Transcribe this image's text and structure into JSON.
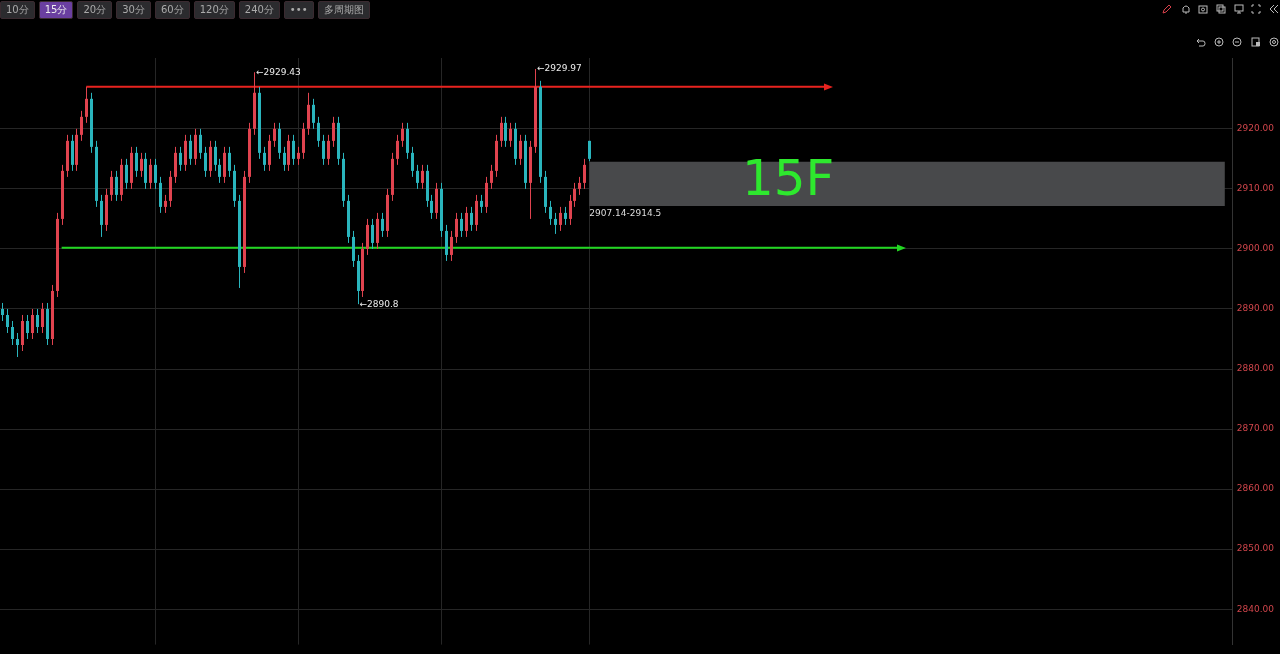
{
  "chart_data": {
    "type": "candlestick",
    "categories": [
      null,
      null,
      null,
      null,
      null,
      null,
      null,
      null,
      null,
      null,
      null,
      null,
      null,
      null,
      null,
      null,
      null,
      null,
      null,
      null,
      null,
      null,
      null,
      null,
      null,
      null,
      null,
      null,
      null,
      null,
      null,
      null,
      null,
      null,
      null,
      null,
      null,
      null,
      null,
      null,
      null,
      null,
      null,
      null,
      null,
      null,
      null,
      null,
      null,
      null,
      null,
      null,
      null,
      null,
      null,
      null,
      null,
      null,
      null,
      null,
      null,
      null,
      null,
      null,
      null,
      null,
      null,
      null,
      null,
      null,
      null,
      null,
      null,
      null,
      null,
      null,
      null,
      null,
      null,
      null,
      null,
      null,
      null,
      null,
      null,
      null,
      null,
      null,
      null,
      null,
      null,
      null,
      null,
      null,
      null,
      null,
      null,
      null,
      null,
      null,
      null,
      null,
      null,
      null,
      null,
      null,
      null,
      null,
      null,
      null,
      null,
      null,
      null,
      null,
      null,
      null,
      null,
      null,
      null,
      null,
      null,
      null,
      null,
      null,
      null,
      null,
      null,
      null,
      null,
      null,
      null,
      null,
      null,
      null,
      null,
      null,
      null,
      null,
      null,
      null,
      null,
      null,
      null,
      null,
      null,
      null,
      null,
      null,
      null,
      null,
      null,
      null,
      null,
      null,
      null,
      null,
      null,
      null,
      null,
      null,
      null,
      null,
      null,
      null,
      null,
      null,
      null,
      null,
      null,
      null,
      null,
      null,
      null,
      null,
      null,
      null,
      null,
      null,
      null,
      null,
      null,
      null,
      null,
      null,
      null,
      null,
      null,
      null,
      null,
      null,
      null,
      null,
      null,
      null,
      null,
      null,
      null,
      null,
      null,
      null,
      null,
      null,
      null,
      null,
      null,
      null,
      null,
      null,
      null,
      null,
      null,
      null,
      null,
      null,
      null,
      null,
      null,
      null,
      null,
      null,
      null,
      null,
      null,
      null,
      null,
      null,
      null,
      null,
      null,
      null,
      null,
      null,
      null,
      null,
      null,
      null,
      null,
      null,
      null,
      null,
      null,
      null,
      null,
      null,
      null,
      null,
      null,
      null,
      null,
      null
    ],
    "ohlc": [
      [
        2890,
        2891,
        2888,
        2889
      ],
      [
        2889,
        2890,
        2886,
        2887
      ],
      [
        2887,
        2888,
        2884,
        2885
      ],
      [
        2885,
        2886,
        2882,
        2884
      ],
      [
        2884,
        2889,
        2883,
        2888
      ],
      [
        2888,
        2889,
        2885,
        2886
      ],
      [
        2886,
        2890,
        2885,
        2889
      ],
      [
        2889,
        2890,
        2886,
        2887
      ],
      [
        2887,
        2891,
        2886,
        2890
      ],
      [
        2890,
        2891,
        2884,
        2885
      ],
      [
        2885,
        2894,
        2884,
        2893
      ],
      [
        2893,
        2906,
        2892,
        2905
      ],
      [
        2905,
        2914,
        2904,
        2913
      ],
      [
        2913,
        2919,
        2912,
        2918
      ],
      [
        2918,
        2919,
        2913,
        2914
      ],
      [
        2914,
        2920,
        2913,
        2919
      ],
      [
        2919,
        2923,
        2918,
        2922
      ],
      [
        2922,
        2927,
        2921,
        2925
      ],
      [
        2925,
        2926,
        2916,
        2917
      ],
      [
        2917,
        2918,
        2907,
        2908
      ],
      [
        2908,
        2909,
        2902,
        2904
      ],
      [
        2904,
        2910,
        2903,
        2909
      ],
      [
        2909,
        2913,
        2908,
        2912
      ],
      [
        2912,
        2913,
        2908,
        2909
      ],
      [
        2909,
        2915,
        2908,
        2914
      ],
      [
        2914,
        2915,
        2910,
        2911
      ],
      [
        2911,
        2917,
        2910,
        2916
      ],
      [
        2916,
        2917,
        2912,
        2913
      ],
      [
        2913,
        2916,
        2912,
        2915
      ],
      [
        2915,
        2916,
        2910,
        2911
      ],
      [
        2911,
        2915,
        2910,
        2914
      ],
      [
        2914,
        2915,
        2910,
        2911
      ],
      [
        2911,
        2912,
        2906,
        2907
      ],
      [
        2907,
        2909,
        2906,
        2908
      ],
      [
        2908,
        2913,
        2907,
        2912
      ],
      [
        2912,
        2917,
        2911,
        2916
      ],
      [
        2916,
        2917,
        2913,
        2914
      ],
      [
        2914,
        2919,
        2913,
        2918
      ],
      [
        2918,
        2919,
        2914,
        2915
      ],
      [
        2915,
        2920,
        2914,
        2919
      ],
      [
        2919,
        2920,
        2915,
        2916
      ],
      [
        2916,
        2917,
        2912,
        2913
      ],
      [
        2913,
        2918,
        2912,
        2917
      ],
      [
        2917,
        2918,
        2913,
        2914
      ],
      [
        2914,
        2915,
        2911,
        2912
      ],
      [
        2912,
        2917,
        2911,
        2916
      ],
      [
        2916,
        2917,
        2912,
        2913
      ],
      [
        2913,
        2914,
        2907,
        2908
      ],
      [
        2908,
        2909,
        2893.5,
        2897
      ],
      [
        2897,
        2913,
        2896,
        2912
      ],
      [
        2912,
        2921,
        2911,
        2920
      ],
      [
        2920,
        2929.43,
        2919,
        2926
      ],
      [
        2926,
        2927,
        2915,
        2916
      ],
      [
        2916,
        2917,
        2913,
        2914
      ],
      [
        2914,
        2919,
        2913,
        2918
      ],
      [
        2918,
        2921,
        2917,
        2920
      ],
      [
        2920,
        2921,
        2915,
        2916
      ],
      [
        2916,
        2917,
        2913,
        2914
      ],
      [
        2914,
        2919,
        2913,
        2918
      ],
      [
        2918,
        2919,
        2914,
        2915
      ],
      [
        2915,
        2917,
        2914,
        2916
      ],
      [
        2916,
        2921,
        2915,
        2920
      ],
      [
        2920,
        2926,
        2919,
        2924
      ],
      [
        2924,
        2925,
        2920,
        2921
      ],
      [
        2921,
        2922,
        2917,
        2918
      ],
      [
        2918,
        2919,
        2914,
        2915
      ],
      [
        2915,
        2919,
        2914,
        2918
      ],
      [
        2918,
        2922,
        2917,
        2921
      ],
      [
        2921,
        2922,
        2914,
        2915
      ],
      [
        2915,
        2916,
        2907,
        2908
      ],
      [
        2908,
        2909,
        2901,
        2902
      ],
      [
        2902,
        2903,
        2897,
        2898
      ],
      [
        2898,
        2899,
        2890.8,
        2893
      ],
      [
        2893,
        2901,
        2892,
        2900
      ],
      [
        2900,
        2905,
        2899,
        2904
      ],
      [
        2904,
        2905,
        2900,
        2901
      ],
      [
        2901,
        2906,
        2900,
        2905
      ],
      [
        2905,
        2906,
        2902,
        2903
      ],
      [
        2903,
        2910,
        2902,
        2909
      ],
      [
        2909,
        2916,
        2908,
        2915
      ],
      [
        2915,
        2919,
        2914,
        2918
      ],
      [
        2918,
        2921,
        2917,
        2920
      ],
      [
        2920,
        2921,
        2915,
        2916
      ],
      [
        2916,
        2917,
        2912,
        2913
      ],
      [
        2913,
        2914,
        2910,
        2911
      ],
      [
        2911,
        2914,
        2910,
        2913
      ],
      [
        2913,
        2914,
        2907,
        2908
      ],
      [
        2908,
        2909,
        2905,
        2906
      ],
      [
        2906,
        2911,
        2905,
        2910
      ],
      [
        2910,
        2911,
        2902,
        2903
      ],
      [
        2903,
        2904,
        2898,
        2899
      ],
      [
        2899,
        2903,
        2898,
        2902
      ],
      [
        2902,
        2906,
        2901,
        2905
      ],
      [
        2905,
        2906,
        2902,
        2903
      ],
      [
        2903,
        2907,
        2902,
        2906
      ],
      [
        2906,
        2907,
        2903,
        2904
      ],
      [
        2904,
        2909,
        2903,
        2908
      ],
      [
        2908,
        2909,
        2906,
        2907
      ],
      [
        2907,
        2912,
        2906,
        2911
      ],
      [
        2911,
        2914,
        2910,
        2913
      ],
      [
        2913,
        2919,
        2912,
        2918
      ],
      [
        2918,
        2922,
        2917,
        2921
      ],
      [
        2921,
        2922,
        2917,
        2918
      ],
      [
        2918,
        2921,
        2917,
        2920
      ],
      [
        2920,
        2921,
        2914,
        2915
      ],
      [
        2915,
        2919,
        2914,
        2918
      ],
      [
        2918,
        2919,
        2910,
        2911
      ],
      [
        2911,
        2918,
        2905,
        2917
      ],
      [
        2917,
        2929.97,
        2916,
        2927
      ],
      [
        2927,
        2928,
        2911,
        2912
      ],
      [
        2912,
        2913,
        2906,
        2907
      ],
      [
        2907,
        2908,
        2904,
        2905
      ],
      [
        2905,
        2906,
        2902.5,
        2904
      ],
      [
        2904,
        2907,
        2903,
        2906
      ],
      [
        2906,
        2907,
        2904,
        2905
      ],
      [
        2905,
        2909,
        2904,
        2908
      ],
      [
        2908,
        2911,
        2907,
        2910
      ],
      [
        2910,
        2912,
        2909,
        2911
      ],
      [
        2911,
        2915,
        2910,
        2914
      ],
      [
        2918,
        2918,
        2914.6,
        2915
      ],
      null,
      null,
      null,
      null,
      null,
      null,
      null,
      null,
      null,
      null,
      null,
      null,
      null,
      null,
      null,
      null,
      null,
      null,
      null,
      null,
      null,
      null,
      null,
      null,
      null,
      null,
      null,
      null,
      null,
      null,
      null,
      null,
      null,
      null,
      null,
      null,
      null,
      null,
      null,
      null,
      null,
      null,
      null,
      null,
      null,
      null,
      null,
      null,
      null,
      null,
      null,
      null,
      null,
      null,
      null,
      null,
      null,
      null,
      null,
      null,
      null,
      null,
      null,
      null,
      null,
      null,
      null,
      null,
      null,
      null,
      null,
      null,
      null,
      null,
      null,
      null,
      null,
      null,
      null,
      null,
      null,
      null,
      null,
      null,
      null,
      null,
      null,
      null,
      null,
      null,
      null,
      null,
      null,
      null,
      null,
      null,
      null,
      null,
      null,
      null,
      null,
      null,
      null,
      null,
      null,
      null,
      null,
      null,
      null,
      null,
      null,
      null,
      null,
      null,
      null,
      null,
      null,
      null,
      null,
      null,
      null,
      null,
      null,
      null,
      null,
      null,
      null,
      null,
      null,
      null
    ],
    "ylim": [
      2834.1,
      2931.8
    ],
    "yticks": [
      {
        "value": 2840,
        "label": "2840.00"
      },
      {
        "value": 2850,
        "label": "2850.00"
      },
      {
        "value": 2860,
        "label": "2860.00"
      },
      {
        "value": 2870,
        "label": "2870.00"
      },
      {
        "value": 2880,
        "label": "2880.00"
      },
      {
        "value": 2890,
        "label": "2890.00"
      },
      {
        "value": 2900,
        "label": "2900.00"
      },
      {
        "value": 2910,
        "label": "2910.00"
      },
      {
        "value": 2920,
        "label": "2920.00"
      }
    ],
    "tick_labels": "y",
    "grid": true,
    "ref_lines": [
      {
        "axis": "y",
        "value": 2927,
        "color": "#e8231f"
      },
      {
        "axis": "y",
        "value": 2900.2,
        "color": "#22d622"
      }
    ],
    "bands": [
      {
        "axis": "y",
        "from": 2907.14,
        "to": 2914.5,
        "label": "2907.14-2914.5",
        "color": "#48494b"
      }
    ],
    "annotations": [
      "←2929.43",
      "←2929.97",
      "←2890.8",
      "15F",
      "10分",
      "15分",
      "20分",
      "30分",
      "60分",
      "120分",
      "240分",
      "•••",
      "多周期图"
    ]
  }
}
